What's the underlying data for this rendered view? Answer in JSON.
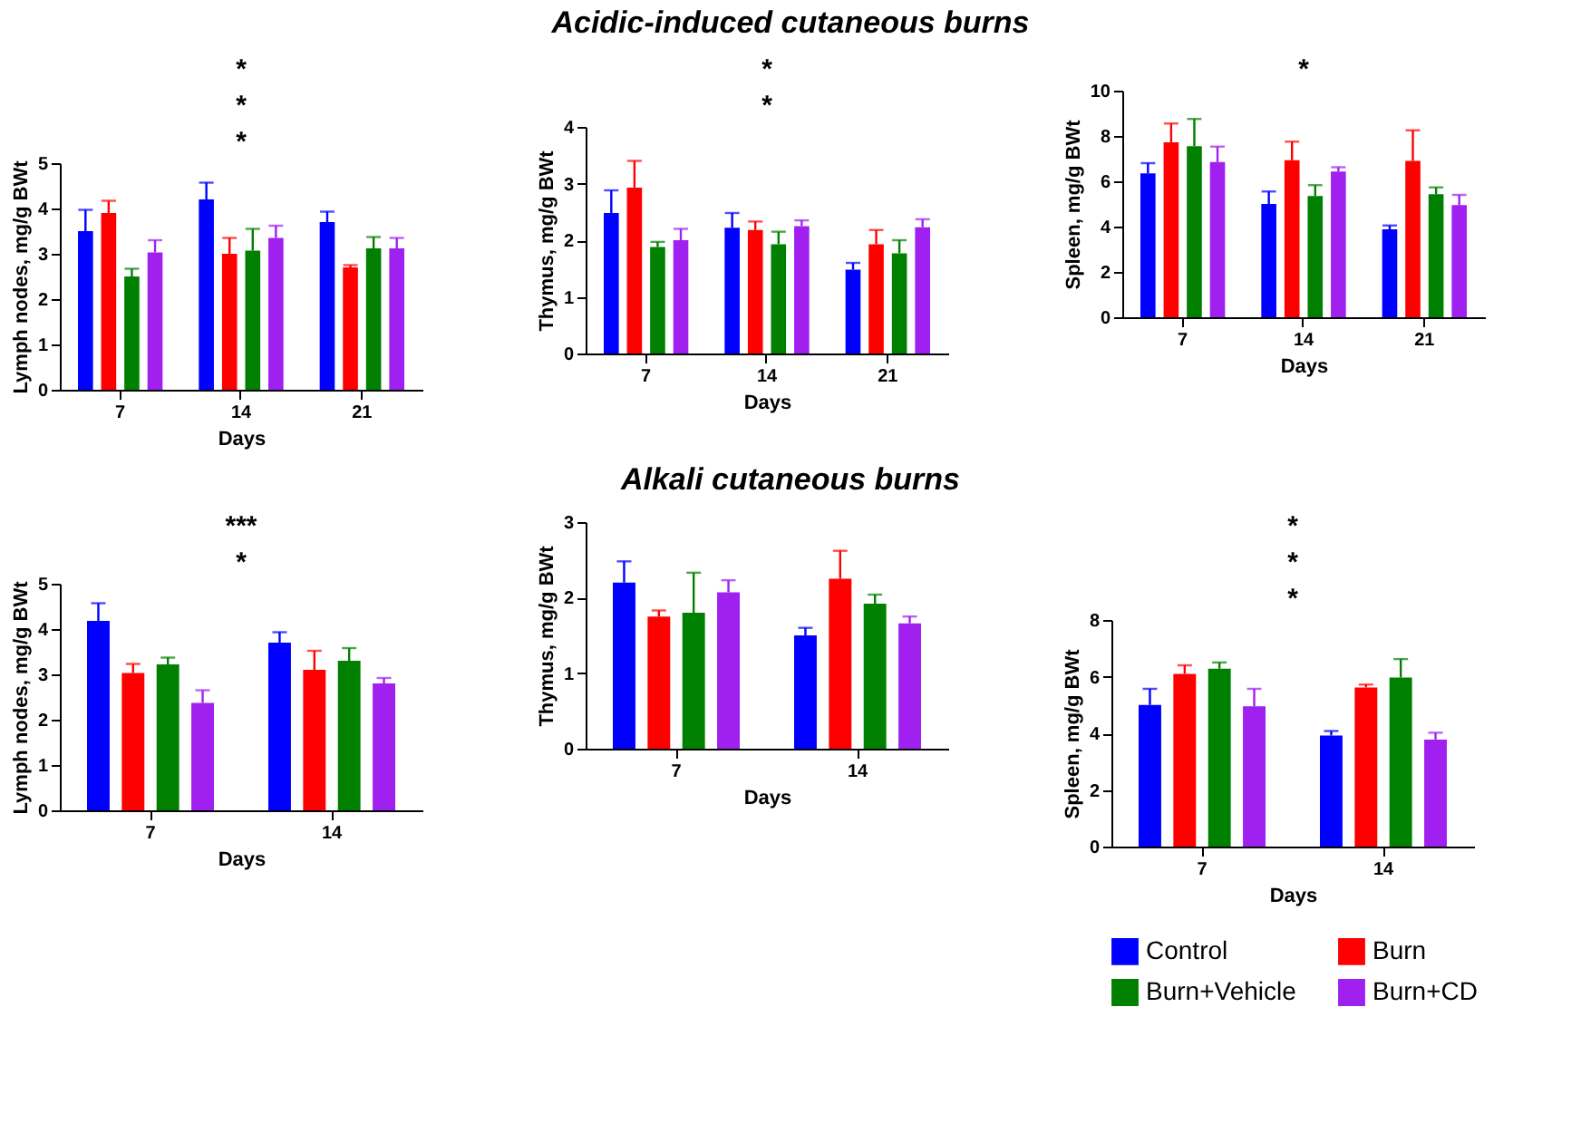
{
  "chart_data": [
    {
      "type": "bar",
      "xlabel": "Days",
      "ylabel": "Lymph nodes, mg/g BWt",
      "categories": [
        "7",
        "14",
        "21"
      ],
      "ylim": [
        0,
        5
      ],
      "yticks": [
        0,
        1,
        2,
        3,
        4,
        5
      ],
      "grid": false,
      "legend": false,
      "series": [
        {
          "color": "#0000ff",
          "values": [
            3.5,
            4.2,
            3.7
          ],
          "errors": [
            [
              3.5,
              3.97
            ],
            [
              4.2,
              4.57
            ],
            [
              3.7,
              3.93
            ]
          ]
        },
        {
          "color": "#ff0000",
          "values": [
            3.9,
            3.0,
            2.7
          ],
          "errors": [
            [
              3.9,
              4.17
            ],
            [
              3.0,
              3.35
            ],
            [
              2.7,
              2.75
            ]
          ]
        },
        {
          "color": "#008000",
          "values": [
            2.5,
            3.07,
            3.12
          ],
          "errors": [
            [
              2.5,
              2.67
            ],
            [
              3.07,
              3.55
            ],
            [
              3.12,
              3.37
            ]
          ]
        },
        {
          "color": "#a020f0",
          "values": [
            3.03,
            3.35,
            3.12
          ],
          "errors": [
            [
              3.03,
              3.3
            ],
            [
              3.35,
              3.62
            ],
            [
              3.12,
              3.35
            ]
          ]
        }
      ],
      "annotations": [
        "*",
        "*",
        "*"
      ]
    },
    {
      "type": "bar",
      "title": "Acidic-induced cutaneous burns",
      "xlabel": "Days",
      "ylabel": "Thymus, mg/g BWt",
      "categories": [
        "7",
        "14",
        "21"
      ],
      "ylim": [
        0,
        4
      ],
      "yticks": [
        0,
        1,
        2,
        3,
        4
      ],
      "grid": false,
      "legend": false,
      "series": [
        {
          "color": "#0000ff",
          "values": [
            2.48,
            2.22,
            1.48
          ],
          "errors": [
            [
              2.48,
              2.88
            ],
            [
              2.22,
              2.48
            ],
            [
              1.48,
              1.6
            ]
          ]
        },
        {
          "color": "#ff0000",
          "values": [
            2.93,
            2.18,
            1.93
          ],
          "errors": [
            [
              2.93,
              3.4
            ],
            [
              2.18,
              2.33
            ],
            [
              1.93,
              2.18
            ]
          ]
        },
        {
          "color": "#008000",
          "values": [
            1.88,
            1.93,
            1.77
          ],
          "errors": [
            [
              1.88,
              1.97
            ],
            [
              1.93,
              2.15
            ],
            [
              1.77,
              2.0
            ]
          ]
        },
        {
          "color": "#a020f0",
          "values": [
            2.0,
            2.25,
            2.23
          ],
          "errors": [
            [
              2.0,
              2.2
            ],
            [
              2.25,
              2.35
            ],
            [
              2.23,
              2.37
            ]
          ]
        }
      ],
      "annotations": [
        "*",
        "*"
      ]
    },
    {
      "type": "bar",
      "xlabel": "Days",
      "ylabel": "Spleen, mg/g BWt",
      "categories": [
        "7",
        "14",
        "21"
      ],
      "ylim": [
        0,
        10
      ],
      "yticks": [
        0,
        2,
        4,
        6,
        8,
        10
      ],
      "grid": false,
      "legend": false,
      "series": [
        {
          "color": "#0000ff",
          "values": [
            6.35,
            5.0,
            3.88
          ],
          "errors": [
            [
              6.35,
              6.8
            ],
            [
              5.0,
              5.55
            ],
            [
              3.88,
              4.05
            ]
          ]
        },
        {
          "color": "#ff0000",
          "values": [
            7.72,
            6.93,
            6.9
          ],
          "errors": [
            [
              7.72,
              8.55
            ],
            [
              6.93,
              7.75
            ],
            [
              6.9,
              8.25
            ]
          ]
        },
        {
          "color": "#008000",
          "values": [
            7.55,
            5.35,
            5.43
          ],
          "errors": [
            [
              7.55,
              8.75
            ],
            [
              5.35,
              5.83
            ],
            [
              5.43,
              5.73
            ]
          ]
        },
        {
          "color": "#a020f0",
          "values": [
            6.85,
            6.43,
            4.95
          ],
          "errors": [
            [
              6.85,
              7.53
            ],
            [
              6.43,
              6.62
            ],
            [
              4.95,
              5.4
            ]
          ]
        }
      ],
      "annotations": [
        "*"
      ]
    },
    {
      "type": "bar",
      "xlabel": "Days",
      "ylabel": "Lymph nodes, mg/g BWt",
      "categories": [
        "7",
        "14"
      ],
      "ylim": [
        0,
        5
      ],
      "yticks": [
        0,
        1,
        2,
        3,
        4,
        5
      ],
      "grid": false,
      "legend": false,
      "series": [
        {
          "color": "#0000ff",
          "values": [
            4.18,
            3.7
          ],
          "errors": [
            [
              4.18,
              4.57
            ],
            [
              3.7,
              3.93
            ]
          ]
        },
        {
          "color": "#ff0000",
          "values": [
            3.03,
            3.1
          ],
          "errors": [
            [
              3.03,
              3.23
            ],
            [
              3.1,
              3.52
            ]
          ]
        },
        {
          "color": "#008000",
          "values": [
            3.22,
            3.3
          ],
          "errors": [
            [
              3.22,
              3.37
            ],
            [
              3.3,
              3.58
            ]
          ]
        },
        {
          "color": "#a020f0",
          "values": [
            2.37,
            2.8
          ],
          "errors": [
            [
              2.37,
              2.65
            ],
            [
              2.8,
              2.92
            ]
          ]
        }
      ],
      "annotations": [
        "*",
        "***"
      ]
    },
    {
      "type": "bar",
      "title": "Alkali cutaneous burns",
      "xlabel": "Days",
      "ylabel": "Thymus, mg/g BWt",
      "categories": [
        "7",
        "14"
      ],
      "ylim": [
        0,
        3
      ],
      "yticks": [
        0,
        1,
        2,
        3
      ],
      "grid": false,
      "legend": false,
      "series": [
        {
          "color": "#0000ff",
          "values": [
            2.2,
            1.5
          ],
          "errors": [
            [
              2.2,
              2.48
            ],
            [
              1.5,
              1.6
            ]
          ]
        },
        {
          "color": "#ff0000",
          "values": [
            1.75,
            2.25
          ],
          "errors": [
            [
              1.75,
              1.83
            ],
            [
              2.25,
              2.62
            ]
          ]
        },
        {
          "color": "#008000",
          "values": [
            1.8,
            1.92
          ],
          "errors": [
            [
              1.8,
              2.33
            ],
            [
              1.92,
              2.04
            ]
          ]
        },
        {
          "color": "#a020f0",
          "values": [
            2.07,
            1.66
          ],
          "errors": [
            [
              2.07,
              2.23
            ],
            [
              1.66,
              1.75
            ]
          ]
        }
      ]
    },
    {
      "type": "bar",
      "xlabel": "Days",
      "ylabel": "Spleen, mg/g BWt",
      "categories": [
        "7",
        "14"
      ],
      "ylim": [
        0,
        8
      ],
      "yticks": [
        0,
        2,
        4,
        6,
        8
      ],
      "grid": false,
      "legend": "bottom",
      "series": [
        {
          "name": "Control",
          "color": "#0000ff",
          "values": [
            5.0,
            3.92
          ],
          "errors": [
            [
              5.0,
              5.57
            ],
            [
              3.92,
              4.08
            ]
          ]
        },
        {
          "name": "Burn",
          "color": "#ff0000",
          "values": [
            6.1,
            5.62
          ],
          "errors": [
            [
              6.1,
              6.4
            ],
            [
              5.62,
              5.72
            ]
          ]
        },
        {
          "name": "Burn+Vehicle",
          "color": "#008000",
          "values": [
            6.28,
            5.97
          ],
          "errors": [
            [
              6.28,
              6.5
            ],
            [
              5.97,
              6.62
            ]
          ]
        },
        {
          "name": "Burn+CD",
          "color": "#a020f0",
          "values": [
            4.95,
            3.78
          ],
          "errors": [
            [
              4.95,
              5.57
            ],
            [
              3.78,
              4.02
            ]
          ]
        }
      ],
      "annotations": [
        "*",
        "*",
        "*"
      ]
    }
  ]
}
